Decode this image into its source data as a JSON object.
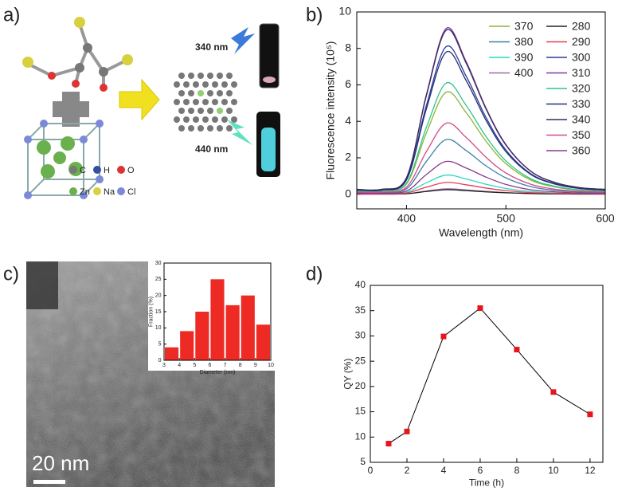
{
  "panel_labels": [
    "a)",
    "b)",
    "c)",
    "d)"
  ],
  "diagram": {
    "excitation": "340 nm",
    "emission": "440 nm",
    "atoms": [
      "C",
      "H",
      "O",
      "Zn",
      "Na",
      "Cl"
    ]
  },
  "scale_bar": "20 nm",
  "chart_data": [
    {
      "type": "line",
      "xlabel": "Wavelength (nm)",
      "ylabel": "Fluorescence intensity (10⁵)",
      "x": [
        350,
        375,
        400,
        420,
        440,
        460,
        480,
        500,
        525,
        550,
        575,
        600
      ],
      "xlim": [
        350,
        600
      ],
      "xticks": [
        400,
        500,
        600
      ],
      "ylim": [
        -0.8,
        10
      ],
      "yticks": [
        0,
        2,
        4,
        6,
        8,
        10
      ],
      "legend": "upper right",
      "series": [
        {
          "name": "370",
          "color": "#8cb43a",
          "values": [
            0.17,
            0.17,
            0.56,
            3.36,
            5.6,
            4.48,
            2.91,
            1.68,
            0.78,
            0.39,
            0.22,
            0.17
          ]
        },
        {
          "name": "380",
          "color": "#3f7fa8",
          "values": [
            0.09,
            0.09,
            0.3,
            1.8,
            3.0,
            2.4,
            1.56,
            0.9,
            0.42,
            0.21,
            0.12,
            0.09
          ]
        },
        {
          "name": "390",
          "color": "#2ed6c0",
          "values": [
            0.03,
            0.03,
            0.11,
            0.63,
            1.05,
            0.84,
            0.55,
            0.32,
            0.15,
            0.07,
            0.04,
            0.03
          ]
        },
        {
          "name": "400",
          "color": "#9a6aa6",
          "values": [
            0.01,
            0.01,
            0.03,
            0.18,
            0.3,
            0.24,
            0.16,
            0.09,
            0.04,
            0.02,
            0.01,
            0.01
          ]
        },
        {
          "name": "280",
          "color": "#222222",
          "values": [
            0.01,
            0.01,
            0.03,
            0.15,
            0.25,
            0.2,
            0.13,
            0.08,
            0.04,
            0.02,
            0.01,
            0.01
          ]
        },
        {
          "name": "290",
          "color": "#e0404e",
          "values": [
            0.02,
            0.02,
            0.07,
            0.39,
            0.65,
            0.52,
            0.34,
            0.2,
            0.09,
            0.05,
            0.03,
            0.02
          ]
        },
        {
          "name": "300",
          "color": "#2b3a9a",
          "values": [
            0.24,
            0.24,
            0.81,
            4.86,
            8.1,
            6.48,
            4.21,
            2.43,
            1.13,
            0.57,
            0.32,
            0.24
          ]
        },
        {
          "name": "310",
          "color": "#7a3a9a",
          "values": [
            0.27,
            0.27,
            0.91,
            5.46,
            9.1,
            7.28,
            4.73,
            2.73,
            1.27,
            0.64,
            0.36,
            0.27
          ]
        },
        {
          "name": "320",
          "color": "#2ec48a",
          "values": [
            0.18,
            0.18,
            0.61,
            3.66,
            6.1,
            4.88,
            3.17,
            1.83,
            0.85,
            0.43,
            0.24,
            0.18
          ]
        },
        {
          "name": "330",
          "color": "#23307a",
          "values": [
            0.23,
            0.23,
            0.78,
            4.68,
            7.8,
            6.24,
            4.06,
            2.34,
            1.09,
            0.55,
            0.31,
            0.23
          ]
        },
        {
          "name": "340",
          "color": "#3a2a5a",
          "values": [
            0.27,
            0.27,
            0.9,
            5.4,
            9.0,
            7.2,
            4.68,
            2.7,
            1.26,
            0.63,
            0.36,
            0.27
          ]
        },
        {
          "name": "350",
          "color": "#d04a8a",
          "values": [
            0.12,
            0.12,
            0.39,
            2.34,
            3.9,
            3.12,
            2.03,
            1.17,
            0.55,
            0.27,
            0.16,
            0.12
          ]
        },
        {
          "name": "360",
          "color": "#8a3a8a",
          "values": [
            0.05,
            0.05,
            0.18,
            1.08,
            1.8,
            1.44,
            0.94,
            0.54,
            0.25,
            0.13,
            0.07,
            0.05
          ]
        }
      ]
    },
    {
      "type": "histogram",
      "xlabel": "Diameter (nm)",
      "ylabel": "Fraction (%)",
      "bins": [
        3,
        4,
        5,
        6,
        7,
        8,
        9,
        10
      ],
      "counts": [
        4,
        9,
        15,
        25,
        17,
        20,
        11
      ],
      "color": "#ee2a24",
      "xlim": [
        3,
        10
      ],
      "xticks": [
        3,
        4,
        5,
        6,
        7,
        8,
        9,
        10
      ],
      "ylim": [
        0,
        30
      ],
      "yticks": [
        0,
        5,
        10,
        15,
        20,
        25,
        30
      ]
    },
    {
      "type": "line",
      "xlabel": "Time (h)",
      "ylabel": "QY (%)",
      "x": [
        1,
        2,
        4,
        6,
        8,
        10,
        12
      ],
      "values": [
        8.7,
        11.1,
        29.9,
        35.5,
        27.3,
        18.9,
        14.5
      ],
      "color": "#000000",
      "marker": "square",
      "marker_color": "#e8141c",
      "xlim": [
        0,
        12.7
      ],
      "xticks": [
        0,
        2,
        4,
        6,
        8,
        10,
        12
      ],
      "ylim": [
        5,
        40
      ],
      "yticks": [
        5,
        10,
        15,
        20,
        25,
        30,
        35,
        40
      ]
    }
  ]
}
